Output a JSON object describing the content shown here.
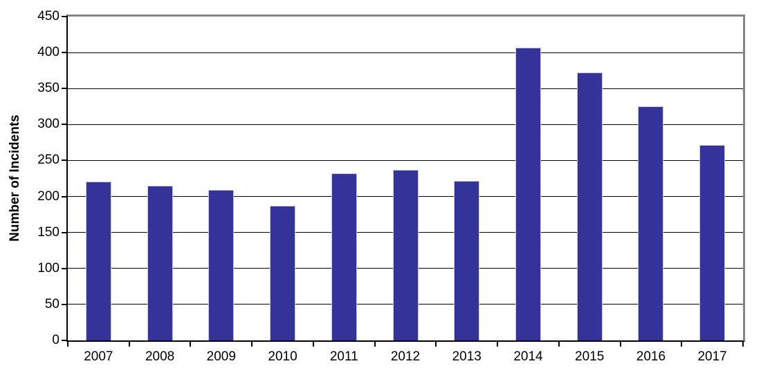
{
  "chart_data": {
    "type": "bar",
    "title": "",
    "xlabel": "",
    "ylabel": "Number of Incidents",
    "categories": [
      "2007",
      "2008",
      "2009",
      "2010",
      "2011",
      "2012",
      "2013",
      "2014",
      "2015",
      "2016",
      "2017"
    ],
    "values": [
      221,
      215,
      209,
      187,
      232,
      237,
      222,
      407,
      372,
      325,
      272
    ],
    "ylim": [
      0,
      450
    ],
    "yticks": [
      0,
      50,
      100,
      150,
      200,
      250,
      300,
      350,
      400,
      450
    ],
    "grid": "horizontal-only",
    "legend": "none",
    "colors": {
      "bar_fill": "#333399",
      "bar_border": "#c9c9ec",
      "gridline": "#000000",
      "axis": "#000000",
      "plot_border_top_right": "#858585",
      "background": "#ffffff",
      "text": "#000000"
    }
  }
}
